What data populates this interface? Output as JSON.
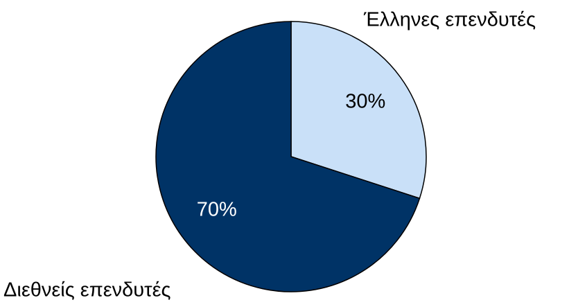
{
  "chart_data": {
    "type": "pie",
    "categories": [
      "Έλληνες επενδυτές",
      "Διεθνείς επενδυτές"
    ],
    "values": [
      30,
      70
    ],
    "value_labels": [
      "30%",
      "70%"
    ],
    "colors": [
      "#c9e0f8",
      "#003366"
    ]
  }
}
